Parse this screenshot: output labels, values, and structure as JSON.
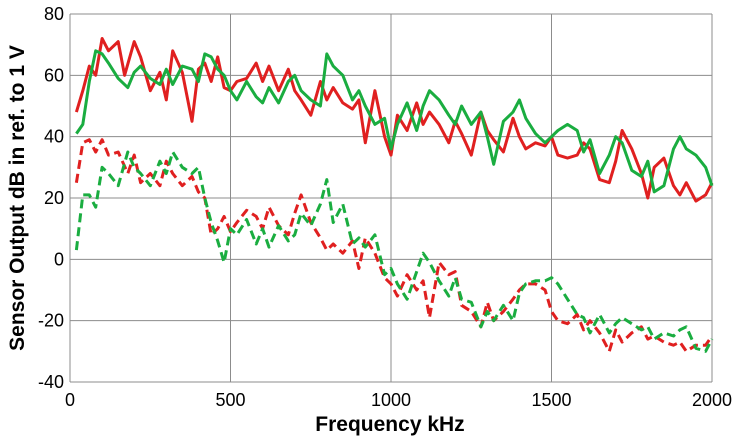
{
  "chart_data": {
    "type": "line",
    "xlabel": "Frequency  kHz",
    "ylabel": "Sensor Output  dB in ref. to 1 V",
    "xlim": [
      0,
      2000
    ],
    "ylim": [
      -40,
      80
    ],
    "xticks": [
      0,
      500,
      1000,
      1500,
      2000
    ],
    "yticks": [
      -40,
      -20,
      0,
      20,
      40,
      60,
      80
    ],
    "grid": true,
    "legend": "none",
    "series": [
      {
        "color": "#e02020",
        "style": "solid",
        "x": [
          20,
          40,
          60,
          80,
          100,
          120,
          150,
          170,
          200,
          220,
          250,
          280,
          300,
          320,
          350,
          380,
          400,
          420,
          440,
          460,
          480,
          500,
          520,
          550,
          580,
          600,
          620,
          650,
          680,
          700,
          720,
          750,
          780,
          800,
          820,
          850,
          880,
          900,
          920,
          950,
          980,
          1000,
          1020,
          1050,
          1080,
          1100,
          1120,
          1150,
          1180,
          1200,
          1220,
          1250,
          1280,
          1300,
          1320,
          1350,
          1380,
          1400,
          1420,
          1450,
          1480,
          1500,
          1520,
          1550,
          1580,
          1600,
          1620,
          1650,
          1680,
          1700,
          1720,
          1750,
          1780,
          1800,
          1820,
          1850,
          1880,
          1900,
          1920,
          1950,
          1980,
          2000
        ],
        "y": [
          48,
          55,
          63,
          60,
          72,
          68,
          71,
          60,
          71,
          66,
          55,
          61,
          52,
          68,
          61,
          45,
          62,
          64,
          58,
          66,
          56,
          55,
          58,
          59,
          64,
          58,
          63,
          55,
          62,
          55,
          52,
          47,
          58,
          52,
          56,
          51,
          49,
          52,
          38,
          55,
          40,
          34,
          47,
          42,
          51,
          44,
          48,
          44,
          38,
          45,
          41,
          34,
          48,
          42,
          39,
          35,
          46,
          40,
          36,
          38,
          37,
          40,
          34,
          33,
          34,
          38,
          36,
          26,
          25,
          32,
          42,
          36,
          28,
          20,
          30,
          33,
          24,
          21,
          25,
          19,
          21,
          25
        ]
      },
      {
        "color": "#1aad40",
        "style": "solid",
        "x": [
          20,
          40,
          60,
          80,
          100,
          120,
          150,
          180,
          200,
          220,
          250,
          280,
          300,
          320,
          350,
          380,
          400,
          420,
          440,
          460,
          480,
          500,
          520,
          550,
          580,
          600,
          620,
          650,
          680,
          700,
          720,
          750,
          780,
          800,
          820,
          850,
          880,
          900,
          920,
          950,
          980,
          1000,
          1020,
          1050,
          1080,
          1100,
          1120,
          1150,
          1180,
          1200,
          1220,
          1250,
          1280,
          1300,
          1320,
          1350,
          1380,
          1400,
          1420,
          1450,
          1480,
          1500,
          1520,
          1550,
          1580,
          1600,
          1620,
          1650,
          1680,
          1700,
          1720,
          1750,
          1780,
          1800,
          1820,
          1850,
          1880,
          1900,
          1920,
          1950,
          1980,
          2000
        ],
        "y": [
          41,
          44,
          58,
          68,
          67,
          64,
          59,
          56,
          61,
          63,
          59,
          57,
          62,
          57,
          63,
          62,
          58,
          67,
          66,
          62,
          60,
          55,
          52,
          58,
          53,
          51,
          56,
          51,
          58,
          60,
          55,
          52,
          50,
          67,
          63,
          60,
          52,
          55,
          50,
          44,
          46,
          36,
          44,
          51,
          42,
          50,
          55,
          52,
          47,
          44,
          50,
          44,
          48,
          40,
          31,
          45,
          48,
          52,
          46,
          41,
          38,
          40,
          42,
          44,
          42,
          35,
          39,
          28,
          34,
          40,
          38,
          29,
          27,
          32,
          22,
          24,
          36,
          40,
          36,
          34,
          30,
          24
        ]
      },
      {
        "color": "#e02020",
        "style": "dashed",
        "x": [
          20,
          40,
          60,
          80,
          100,
          120,
          150,
          180,
          200,
          220,
          250,
          280,
          300,
          320,
          350,
          380,
          400,
          420,
          440,
          460,
          480,
          500,
          520,
          550,
          580,
          600,
          620,
          650,
          680,
          700,
          720,
          750,
          780,
          800,
          820,
          850,
          880,
          900,
          920,
          950,
          980,
          1000,
          1020,
          1050,
          1080,
          1100,
          1120,
          1150,
          1180,
          1200,
          1220,
          1250,
          1280,
          1300,
          1320,
          1350,
          1380,
          1400,
          1420,
          1450,
          1480,
          1500,
          1520,
          1550,
          1580,
          1600,
          1620,
          1650,
          1680,
          1700,
          1720,
          1750,
          1780,
          1800,
          1820,
          1850,
          1880,
          1900,
          1920,
          1950,
          1980,
          2000
        ],
        "y": [
          25,
          38,
          39,
          35,
          39,
          34,
          35,
          28,
          34,
          25,
          28,
          24,
          32,
          28,
          24,
          27,
          22,
          20,
          8,
          10,
          14,
          9,
          12,
          16,
          14,
          10,
          17,
          11,
          8,
          15,
          21,
          12,
          7,
          3,
          5,
          2,
          6,
          -3,
          7,
          2,
          -6,
          -8,
          -12,
          -5,
          -10,
          -7,
          -19,
          -1,
          -5,
          -4,
          -15,
          -17,
          -22,
          -14,
          -20,
          -17,
          -13,
          -10,
          -8,
          -8,
          -10,
          -17,
          -20,
          -21,
          -18,
          -23,
          -20,
          -24,
          -30,
          -23,
          -27,
          -24,
          -22,
          -26,
          -25,
          -27,
          -28,
          -27,
          -30,
          -28,
          -28,
          -25
        ]
      },
      {
        "color": "#1aad40",
        "style": "dashed",
        "x": [
          20,
          40,
          60,
          80,
          100,
          120,
          150,
          180,
          200,
          220,
          250,
          280,
          300,
          320,
          350,
          380,
          400,
          420,
          440,
          460,
          480,
          500,
          520,
          550,
          580,
          600,
          620,
          650,
          680,
          700,
          720,
          750,
          780,
          800,
          820,
          850,
          880,
          900,
          920,
          950,
          980,
          1000,
          1020,
          1050,
          1080,
          1100,
          1120,
          1150,
          1180,
          1200,
          1220,
          1250,
          1280,
          1300,
          1320,
          1350,
          1380,
          1400,
          1420,
          1450,
          1480,
          1500,
          1520,
          1550,
          1580,
          1600,
          1620,
          1650,
          1680,
          1700,
          1720,
          1750,
          1780,
          1800,
          1820,
          1850,
          1880,
          1900,
          1920,
          1950,
          1980,
          2000
        ],
        "y": [
          3,
          21,
          21,
          17,
          30,
          28,
          24,
          35,
          30,
          28,
          24,
          32,
          28,
          35,
          30,
          28,
          30,
          20,
          12,
          6,
          -1,
          10,
          8,
          13,
          5,
          10,
          4,
          11,
          6,
          8,
          15,
          11,
          18,
          26,
          12,
          18,
          5,
          7,
          4,
          8,
          -5,
          -3,
          -8,
          -13,
          -4,
          2,
          -1,
          -7,
          -12,
          -6,
          -13,
          -14,
          -22,
          -17,
          -20,
          -15,
          -20,
          -11,
          -8,
          -7,
          -7,
          -6,
          -8,
          -13,
          -18,
          -19,
          -24,
          -18,
          -24,
          -21,
          -19,
          -21,
          -23,
          -22,
          -26,
          -24,
          -25,
          -23,
          -22,
          -29,
          -30,
          -26
        ]
      }
    ]
  }
}
